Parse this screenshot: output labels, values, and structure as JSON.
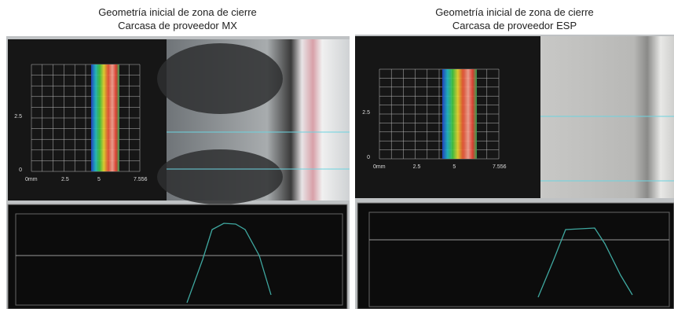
{
  "panels": [
    {
      "title": "Geometría inicial de zona de cierre",
      "subtitle": "Carcasa de proveedor MX",
      "x_labels": [
        "0mm",
        "2.5",
        "5",
        "7.556"
      ],
      "y_labels": [
        "2.5",
        "0"
      ]
    },
    {
      "title": "Geometría inicial de zona de cierre",
      "subtitle": "Carcasa de proveedor ESP",
      "x_labels": [
        "0mm",
        "2.5",
        "5",
        "7.556"
      ],
      "y_labels": [
        "2.5",
        "0"
      ]
    }
  ]
}
